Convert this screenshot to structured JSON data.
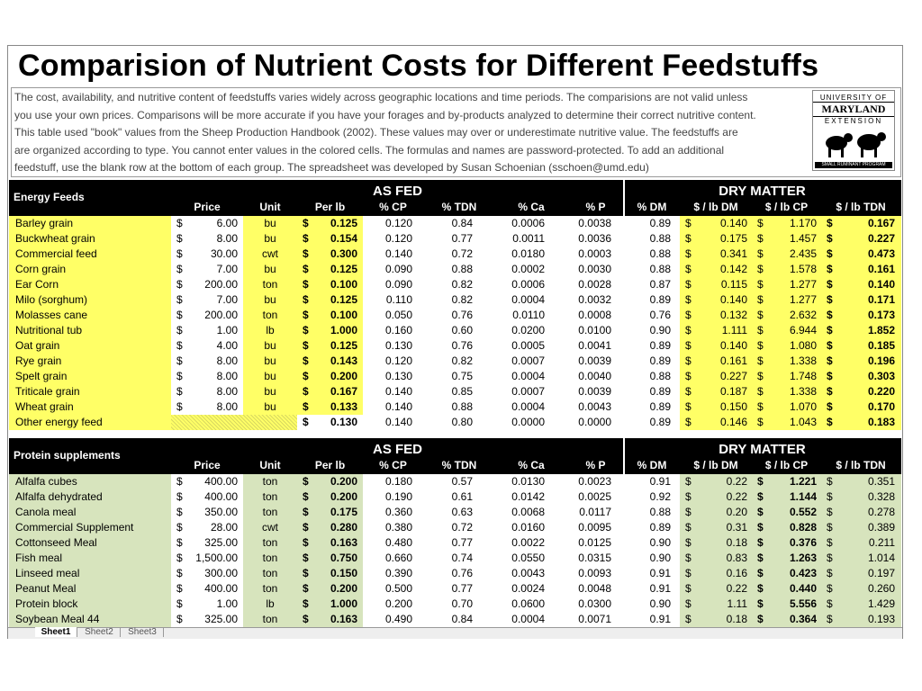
{
  "title": "Comparision of Nutrient Costs for Different Feedstuffs",
  "description": [
    "The cost, availability, and nutritive content of feedstuffs varies widely across geographic locations and time periods. The comparisions are not valid unless",
    "you use your own prices. Comparisons will be more accurate if you have your forages and by-products analyzed to determine their correct nutritive content.",
    "This table used \"book\" values from the Sheep Production Handbook (2002). These values may over or underestimate nutritive value. The feedstuffs are",
    "are organized according to type. You cannot enter values in the colored cells. The formulas and names are password-protected. To add an additional",
    "feedstuff, use the blank row at the bottom of each group. The spreadsheet was developed by Susan Schoenian (sschoen@umd.edu)"
  ],
  "logo": {
    "line1": "UNIVERSITY OF",
    "line2": "MARYLAND",
    "line3": "EXTENSION",
    "line4": "SMALL RUMINANT PROGRAM"
  },
  "currency": "$",
  "sections": [
    {
      "title": "Energy Feeds",
      "group1": "AS FED",
      "group2": "DRY MATTER",
      "columns": [
        "Price",
        "Unit",
        "Per lb",
        "% CP",
        "% TDN",
        "% Ca",
        "% P",
        "% DM",
        "$ / lb DM",
        "$ / lb CP",
        "$ / lb TDN"
      ],
      "rows": [
        [
          "Barley grain",
          "6.00",
          "bu",
          "0.125",
          "0.120",
          "0.84",
          "0.0006",
          "0.0038",
          "0.89",
          "0.140",
          "1.170",
          "0.167"
        ],
        [
          "Buckwheat grain",
          "8.00",
          "bu",
          "0.154",
          "0.120",
          "0.77",
          "0.0011",
          "0.0036",
          "0.88",
          "0.175",
          "1.457",
          "0.227"
        ],
        [
          "Commercial feed",
          "30.00",
          "cwt",
          "0.300",
          "0.140",
          "0.72",
          "0.0180",
          "0.0003",
          "0.88",
          "0.341",
          "2.435",
          "0.473"
        ],
        [
          "Corn grain",
          "7.00",
          "bu",
          "0.125",
          "0.090",
          "0.88",
          "0.0002",
          "0.0030",
          "0.88",
          "0.142",
          "1.578",
          "0.161"
        ],
        [
          "Ear Corn",
          "200.00",
          "ton",
          "0.100",
          "0.090",
          "0.82",
          "0.0006",
          "0.0028",
          "0.87",
          "0.115",
          "1.277",
          "0.140"
        ],
        [
          "Milo (sorghum)",
          "7.00",
          "bu",
          "0.125",
          "0.110",
          "0.82",
          "0.0004",
          "0.0032",
          "0.89",
          "0.140",
          "1.277",
          "0.171"
        ],
        [
          "Molasses cane",
          "200.00",
          "ton",
          "0.100",
          "0.050",
          "0.76",
          "0.0110",
          "0.0008",
          "0.76",
          "0.132",
          "2.632",
          "0.173"
        ],
        [
          "Nutritional tub",
          "1.00",
          "lb",
          "1.000",
          "0.160",
          "0.60",
          "0.0200",
          "0.0100",
          "0.90",
          "1.111",
          "6.944",
          "1.852"
        ],
        [
          "Oat grain",
          "4.00",
          "bu",
          "0.125",
          "0.130",
          "0.76",
          "0.0005",
          "0.0041",
          "0.89",
          "0.140",
          "1.080",
          "0.185"
        ],
        [
          "Rye grain",
          "8.00",
          "bu",
          "0.143",
          "0.120",
          "0.82",
          "0.0007",
          "0.0039",
          "0.89",
          "0.161",
          "1.338",
          "0.196"
        ],
        [
          "Spelt grain",
          "8.00",
          "bu",
          "0.200",
          "0.130",
          "0.75",
          "0.0004",
          "0.0040",
          "0.88",
          "0.227",
          "1.748",
          "0.303"
        ],
        [
          "Triticale grain",
          "8.00",
          "bu",
          "0.167",
          "0.140",
          "0.85",
          "0.0007",
          "0.0039",
          "0.89",
          "0.187",
          "1.338",
          "0.220"
        ],
        [
          "Wheat grain",
          "8.00",
          "bu",
          "0.133",
          "0.140",
          "0.88",
          "0.0004",
          "0.0043",
          "0.89",
          "0.150",
          "1.070",
          "0.170"
        ],
        [
          "Other energy feed",
          null,
          null,
          "0.130",
          "0.140",
          "0.80",
          "0.0000",
          "0.0000",
          "0.89",
          "0.146",
          "1.043",
          "0.183"
        ]
      ]
    },
    {
      "title": "Protein supplements",
      "group1": "AS FED",
      "group2": "DRY MATTER",
      "columns": [
        "Price",
        "Unit",
        "Per lb",
        "% CP",
        "% TDN",
        "% Ca",
        "% P",
        "% DM",
        "$ / lb DM",
        "$ / lb CP",
        "$ / lb TDN"
      ],
      "rows": [
        [
          "Alfalfa cubes",
          "400.00",
          "ton",
          "0.200",
          "0.180",
          "0.57",
          "0.0130",
          "0.0023",
          "0.91",
          "0.22",
          "1.221",
          "0.351"
        ],
        [
          "Alfalfa dehydrated",
          "400.00",
          "ton",
          "0.200",
          "0.190",
          "0.61",
          "0.0142",
          "0.0025",
          "0.92",
          "0.22",
          "1.144",
          "0.328"
        ],
        [
          "Canola meal",
          "350.00",
          "ton",
          "0.175",
          "0.360",
          "0.63",
          "0.0068",
          "0.0117",
          "0.88",
          "0.20",
          "0.552",
          "0.278"
        ],
        [
          "Commercial Supplement",
          "28.00",
          "cwt",
          "0.280",
          "0.380",
          "0.72",
          "0.0160",
          "0.0095",
          "0.89",
          "0.31",
          "0.828",
          "0.389"
        ],
        [
          "Cottonseed Meal",
          "325.00",
          "ton",
          "0.163",
          "0.480",
          "0.77",
          "0.0022",
          "0.0125",
          "0.90",
          "0.18",
          "0.376",
          "0.211"
        ],
        [
          "Fish meal",
          "1,500.00",
          "ton",
          "0.750",
          "0.660",
          "0.74",
          "0.0550",
          "0.0315",
          "0.90",
          "0.83",
          "1.263",
          "1.014"
        ],
        [
          "Linseed meal",
          "300.00",
          "ton",
          "0.150",
          "0.390",
          "0.76",
          "0.0043",
          "0.0093",
          "0.91",
          "0.16",
          "0.423",
          "0.197"
        ],
        [
          "Peanut Meal",
          "400.00",
          "ton",
          "0.200",
          "0.500",
          "0.77",
          "0.0024",
          "0.0048",
          "0.91",
          "0.22",
          "0.440",
          "0.260"
        ],
        [
          "Protein block",
          "1.00",
          "lb",
          "1.000",
          "0.200",
          "0.70",
          "0.0600",
          "0.0300",
          "0.90",
          "1.11",
          "5.556",
          "1.429"
        ],
        [
          "Soybean Meal 44",
          "325.00",
          "ton",
          "0.163",
          "0.490",
          "0.84",
          "0.0004",
          "0.0071",
          "0.91",
          "0.18",
          "0.364",
          "0.193"
        ]
      ]
    }
  ],
  "tabs": [
    "Sheet1",
    "Sheet2",
    "Sheet3"
  ]
}
